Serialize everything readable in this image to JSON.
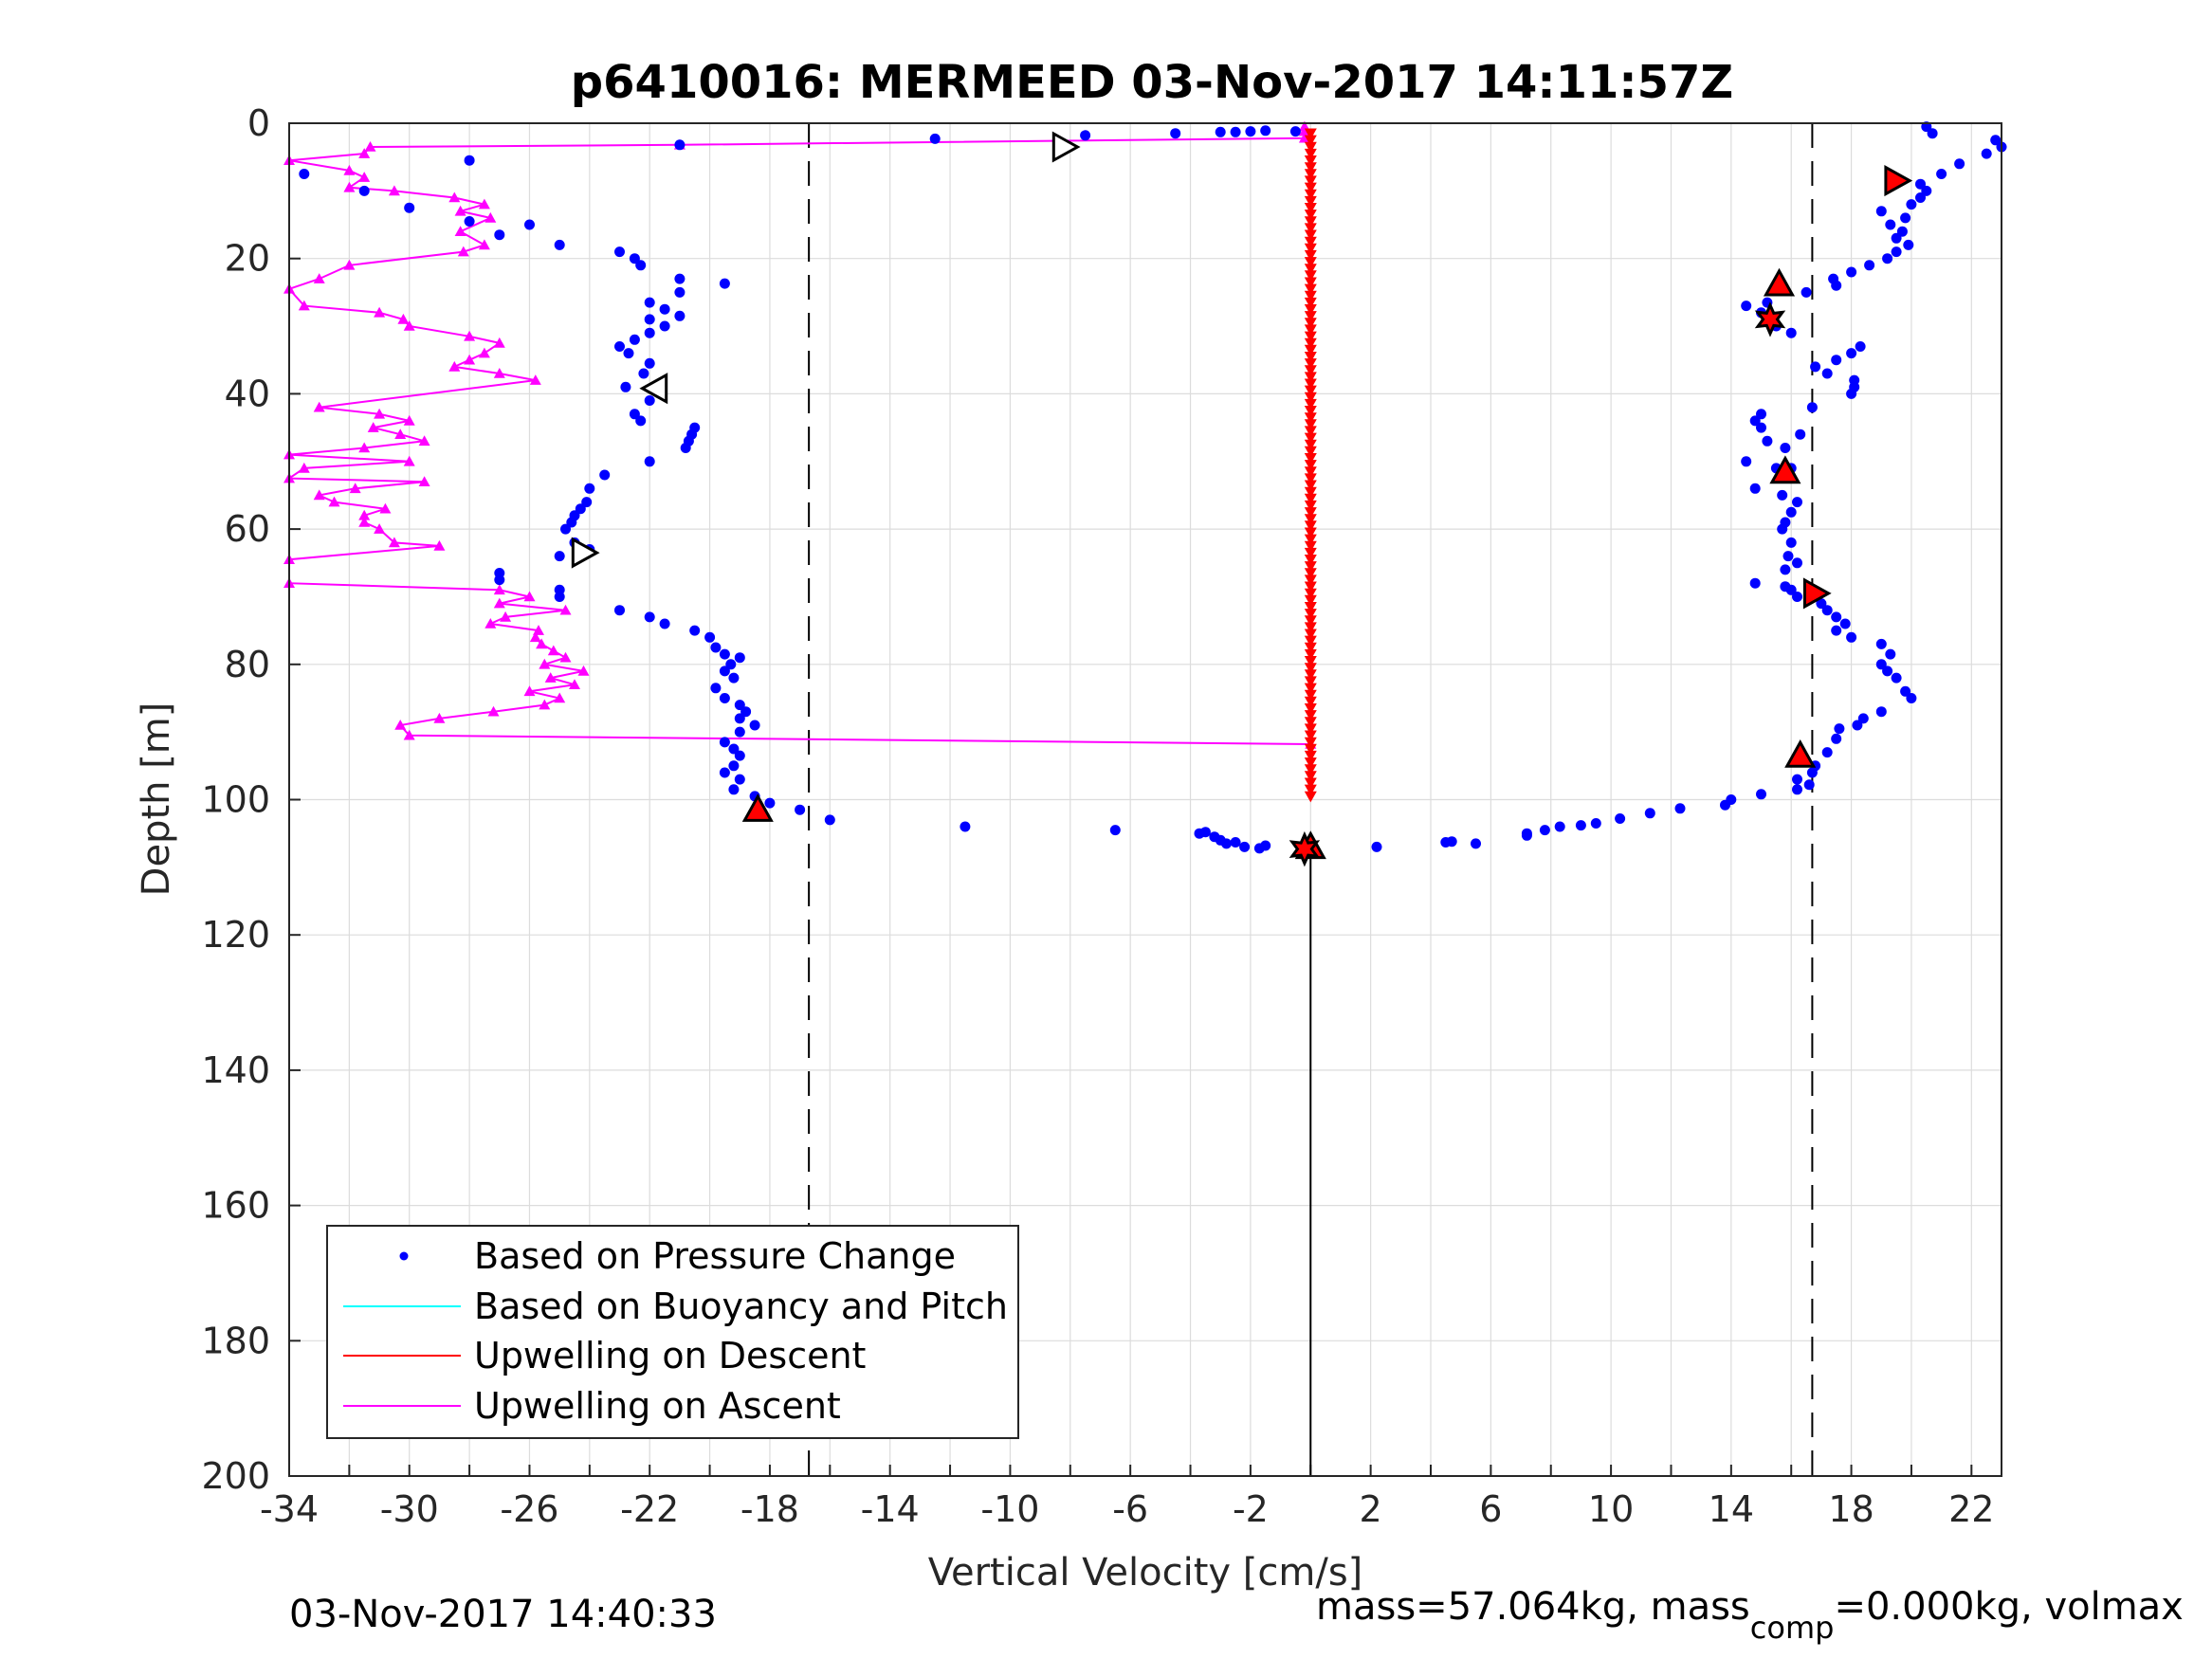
{
  "chart_data": {
    "type": "scatter",
    "title": "p6410016: MERMEED 03-Nov-2017 14:11:57Z",
    "xlabel": "Vertical Velocity [cm/s]",
    "ylabel": "Depth [m]",
    "xlim": [
      -34,
      23
    ],
    "ylim": [
      0,
      200
    ],
    "y_reversed": true,
    "grid": true,
    "xticks": [
      -34,
      -30,
      -26,
      -22,
      -18,
      -14,
      -10,
      -6,
      -2,
      2,
      6,
      10,
      14,
      18,
      22
    ],
    "yticks": [
      0,
      20,
      40,
      60,
      80,
      100,
      120,
      140,
      160,
      180,
      200
    ],
    "legend_position": "bottom-left",
    "reference_lines": [
      {
        "x": -16.7,
        "style": "dashed",
        "color": "#000000"
      },
      {
        "x": 16.7,
        "style": "dashed",
        "color": "#000000"
      },
      {
        "x": 0,
        "style": "solid",
        "color": "#000000",
        "from_depth": 107.5,
        "to_depth": 200
      }
    ],
    "series": [
      {
        "name": "Based on Pressure Change",
        "style": "dots",
        "color": "#0000ff",
        "points": [
          [
            -0.5,
            1.2
          ],
          [
            -1.5,
            1.1
          ],
          [
            -2.0,
            1.2
          ],
          [
            -2.5,
            1.3
          ],
          [
            -3.0,
            1.3
          ],
          [
            -4.5,
            1.5
          ],
          [
            -7.5,
            1.8
          ],
          [
            -12.5,
            2.3
          ],
          [
            -21,
            3.2
          ],
          [
            -33.5,
            7.5
          ],
          [
            -31.5,
            10
          ],
          [
            -30,
            12.5
          ],
          [
            -28,
            5.5
          ],
          [
            -28,
            14.5
          ],
          [
            -27,
            16.5
          ],
          [
            -26,
            15
          ],
          [
            -25,
            18
          ],
          [
            -23,
            19
          ],
          [
            -22.5,
            20
          ],
          [
            -22.3,
            21
          ],
          [
            -21,
            23
          ],
          [
            -19.5,
            23.7
          ],
          [
            -21,
            25
          ],
          [
            -22,
            26.5
          ],
          [
            -21.5,
            27.5
          ],
          [
            -21,
            28.5
          ],
          [
            -22,
            29
          ],
          [
            -21.5,
            30
          ],
          [
            -22,
            31
          ],
          [
            -22.5,
            32
          ],
          [
            -23,
            33
          ],
          [
            -22.7,
            34
          ],
          [
            -22,
            35.5
          ],
          [
            -22.2,
            37
          ],
          [
            -22.8,
            39
          ],
          [
            -22,
            41
          ],
          [
            -22.5,
            43
          ],
          [
            -22.3,
            44
          ],
          [
            -20.5,
            45
          ],
          [
            -20.6,
            46
          ],
          [
            -20.7,
            47
          ],
          [
            -20.8,
            48
          ],
          [
            -22,
            50
          ],
          [
            -23.5,
            52
          ],
          [
            -24,
            54
          ],
          [
            -24.1,
            56
          ],
          [
            -24.3,
            57
          ],
          [
            -24.5,
            58
          ],
          [
            -24.6,
            59
          ],
          [
            -24.8,
            60
          ],
          [
            -24.5,
            62
          ],
          [
            -24,
            63
          ],
          [
            -25,
            64
          ],
          [
            -27,
            66.5
          ],
          [
            -27,
            67.5
          ],
          [
            -25,
            69
          ],
          [
            -25,
            70
          ],
          [
            -23,
            72
          ],
          [
            -22,
            73
          ],
          [
            -21.5,
            74
          ],
          [
            -20.5,
            75
          ],
          [
            -20,
            76
          ],
          [
            -19.8,
            77.5
          ],
          [
            -19.5,
            78.5
          ],
          [
            -19,
            79
          ],
          [
            -19.3,
            80
          ],
          [
            -19.5,
            81
          ],
          [
            -19.2,
            82
          ],
          [
            -19.8,
            83.5
          ],
          [
            -19.5,
            85
          ],
          [
            -19,
            86
          ],
          [
            -18.8,
            87
          ],
          [
            -19,
            88
          ],
          [
            -18.5,
            89
          ],
          [
            -19,
            90
          ],
          [
            -19.5,
            91.5
          ],
          [
            -19.2,
            92.5
          ],
          [
            -19,
            93.5
          ],
          [
            -19.2,
            95
          ],
          [
            -19.5,
            96
          ],
          [
            -19,
            97
          ],
          [
            -19.2,
            98.5
          ],
          [
            -18.5,
            99.5
          ],
          [
            -18,
            100.5
          ],
          [
            -17,
            101.5
          ],
          [
            -16,
            103
          ],
          [
            -11.5,
            104
          ],
          [
            -6.5,
            104.5
          ],
          [
            -3.7,
            105
          ],
          [
            -3.5,
            104.8
          ],
          [
            -3.2,
            105.5
          ],
          [
            -3.0,
            106
          ],
          [
            -2.8,
            106.5
          ],
          [
            -2.5,
            106.3
          ],
          [
            -2.2,
            107
          ],
          [
            -1.7,
            107.2
          ],
          [
            -1.5,
            106.8
          ],
          [
            2.2,
            107
          ],
          [
            4.5,
            106.3
          ],
          [
            4.7,
            106.2
          ],
          [
            5.5,
            106.5
          ],
          [
            7.2,
            105.3
          ],
          [
            7.2,
            105
          ],
          [
            7.8,
            104.5
          ],
          [
            8.3,
            104
          ],
          [
            9.0,
            103.8
          ],
          [
            9.5,
            103.5
          ],
          [
            10.3,
            102.8
          ],
          [
            11.3,
            102
          ],
          [
            12.3,
            101.3
          ],
          [
            13.8,
            100.8
          ],
          [
            14.0,
            100
          ],
          [
            15.0,
            99.2
          ],
          [
            16.2,
            98.5
          ],
          [
            16.6,
            97.8
          ],
          [
            16.2,
            97
          ],
          [
            16.7,
            96
          ],
          [
            16.8,
            95
          ],
          [
            17.2,
            93
          ],
          [
            17.5,
            91
          ],
          [
            17.6,
            89.5
          ],
          [
            18.2,
            89
          ],
          [
            18.4,
            88
          ],
          [
            19.0,
            87
          ],
          [
            20.0,
            85
          ],
          [
            19.8,
            84
          ],
          [
            19.5,
            82
          ],
          [
            19.2,
            81
          ],
          [
            19.0,
            80
          ],
          [
            19.3,
            78.5
          ],
          [
            19.0,
            77
          ],
          [
            18.0,
            76
          ],
          [
            17.5,
            75
          ],
          [
            17.8,
            74
          ],
          [
            17.5,
            73
          ],
          [
            17.2,
            72
          ],
          [
            17.0,
            71
          ],
          [
            16.2,
            70
          ],
          [
            16.0,
            69
          ],
          [
            15.8,
            68.5
          ],
          [
            14.8,
            68
          ],
          [
            15.8,
            66
          ],
          [
            16.2,
            65
          ],
          [
            15.9,
            64
          ],
          [
            16.0,
            62
          ],
          [
            15.7,
            60
          ],
          [
            15.8,
            59
          ],
          [
            16.0,
            57.5
          ],
          [
            16.2,
            56
          ],
          [
            15.7,
            55
          ],
          [
            14.8,
            54
          ],
          [
            15.7,
            52
          ],
          [
            15.5,
            51
          ],
          [
            16.0,
            51
          ],
          [
            14.5,
            50
          ],
          [
            15.8,
            48
          ],
          [
            15.2,
            47
          ],
          [
            16.3,
            46
          ],
          [
            15.0,
            45
          ],
          [
            14.8,
            44
          ],
          [
            15.0,
            43
          ],
          [
            16.7,
            42
          ],
          [
            18.0,
            40
          ],
          [
            18.1,
            39
          ],
          [
            18.1,
            38
          ],
          [
            17.2,
            37
          ],
          [
            16.8,
            36
          ],
          [
            17.5,
            35
          ],
          [
            18.0,
            34
          ],
          [
            18.3,
            33
          ],
          [
            16.0,
            31
          ],
          [
            15.5,
            30
          ],
          [
            15.2,
            29
          ],
          [
            15.0,
            28
          ],
          [
            14.5,
            27
          ],
          [
            15.2,
            26.5
          ],
          [
            16.5,
            25
          ],
          [
            17.5,
            24
          ],
          [
            17.4,
            23
          ],
          [
            18,
            22
          ],
          [
            18.6,
            21
          ],
          [
            19.2,
            20
          ],
          [
            19.5,
            19
          ],
          [
            19.9,
            18
          ],
          [
            19.5,
            17
          ],
          [
            19.7,
            16
          ],
          [
            19.3,
            15
          ],
          [
            19.8,
            14
          ],
          [
            19.0,
            13
          ],
          [
            20.0,
            12
          ],
          [
            20.3,
            11
          ],
          [
            20.5,
            10
          ],
          [
            20.3,
            9
          ],
          [
            21.0,
            7.5
          ],
          [
            21.6,
            6
          ],
          [
            22.5,
            4.5
          ],
          [
            23.0,
            3.5
          ],
          [
            22.8,
            2.5
          ],
          [
            20.7,
            1.5
          ],
          [
            20.5,
            0.5
          ]
        ]
      },
      {
        "name": "Based on Buoyancy and Pitch",
        "style": "line",
        "color": "#00ffff",
        "points": []
      },
      {
        "name": "Upwelling on Descent",
        "style": "line-with-triangle-down-markers",
        "color": "#ff0000",
        "x_constant": 0,
        "depth_start": 1.5,
        "depth_end": 100,
        "depth_step": 1.0
      },
      {
        "name": "Upwelling on Ascent",
        "style": "line-with-triangle-up-markers",
        "color": "#ff00ff",
        "points": [
          [
            0,
            91.8
          ],
          [
            -30,
            90.5
          ],
          [
            -30.3,
            89
          ],
          [
            -29,
            88
          ],
          [
            -27.2,
            87
          ],
          [
            -25.5,
            86
          ],
          [
            -25,
            85
          ],
          [
            -26,
            84
          ],
          [
            -24.5,
            83
          ],
          [
            -25.3,
            82
          ],
          [
            -24.2,
            81
          ],
          [
            -25.5,
            80
          ],
          [
            -24.8,
            79
          ],
          [
            -25.2,
            78
          ],
          [
            -25.6,
            77
          ],
          [
            -25.8,
            76
          ],
          [
            -25.7,
            75
          ],
          [
            -27.3,
            74
          ],
          [
            -26.8,
            73
          ],
          [
            -24.8,
            72
          ],
          [
            -27,
            71
          ],
          [
            -26,
            70
          ],
          [
            -27,
            69
          ],
          [
            -34,
            68
          ],
          [
            -34,
            64.5
          ],
          [
            -29,
            62.5
          ],
          [
            -30.5,
            62
          ],
          [
            -31,
            60
          ],
          [
            -31.5,
            59
          ],
          [
            -31.5,
            58
          ],
          [
            -30.8,
            57
          ],
          [
            -32.5,
            56
          ],
          [
            -33,
            55
          ],
          [
            -31.8,
            54
          ],
          [
            -29.5,
            53
          ],
          [
            -34,
            52.5
          ],
          [
            -33.5,
            51
          ],
          [
            -30,
            50
          ],
          [
            -34,
            49
          ],
          [
            -31.5,
            48
          ],
          [
            -29.5,
            47
          ],
          [
            -30.3,
            46
          ],
          [
            -31.2,
            45
          ],
          [
            -30,
            44
          ],
          [
            -31,
            43
          ],
          [
            -33,
            42
          ],
          [
            -25.8,
            38
          ],
          [
            -27,
            37
          ],
          [
            -28.5,
            36
          ],
          [
            -28,
            35
          ],
          [
            -27.5,
            34
          ],
          [
            -27,
            32.5
          ],
          [
            -28,
            31.5
          ],
          [
            -30,
            30
          ],
          [
            -30.2,
            29
          ],
          [
            -31,
            28
          ],
          [
            -33.5,
            27
          ],
          [
            -34,
            24.5
          ],
          [
            -33,
            23
          ],
          [
            -32,
            21
          ],
          [
            -28.2,
            19
          ],
          [
            -27.5,
            18
          ],
          [
            -28.3,
            16
          ],
          [
            -27.3,
            14
          ],
          [
            -28.3,
            13
          ],
          [
            -27.5,
            12
          ],
          [
            -28.5,
            11
          ],
          [
            -30.5,
            10
          ],
          [
            -32,
            9.5
          ],
          [
            -31.5,
            8
          ],
          [
            -32,
            7
          ],
          [
            -34,
            5.5
          ],
          [
            -31.5,
            4.5
          ],
          [
            -31.3,
            3.5
          ],
          [
            -21,
            3.2
          ],
          [
            -0.2,
            2.2
          ],
          [
            -0.2,
            1.2
          ],
          [
            -0.2,
            0.5
          ]
        ]
      }
    ],
    "markers": [
      {
        "shape": "triangle-right",
        "fill": "#ffffff",
        "points": [
          [
            -8.2,
            3.5
          ],
          [
            -24.2,
            63.5
          ]
        ]
      },
      {
        "shape": "triangle-left",
        "fill": "#ffffff",
        "points": [
          [
            -21.8,
            39.2
          ]
        ]
      },
      {
        "shape": "triangle-up",
        "fill": "#ff0000",
        "points": [
          [
            -18.4,
            101.5
          ],
          [
            15.6,
            23.8
          ],
          [
            15.8,
            51.5
          ],
          [
            16.3,
            93.5
          ],
          [
            0,
            107
          ]
        ]
      },
      {
        "shape": "triangle-right",
        "fill": "#ff0000",
        "points": [
          [
            19.5,
            8.5
          ],
          [
            16.8,
            69.5
          ]
        ]
      },
      {
        "shape": "hexagram",
        "fill": "#ff0000",
        "points": [
          [
            15.3,
            29
          ],
          [
            -0.2,
            107.3
          ]
        ]
      }
    ]
  },
  "footer": {
    "timestamp": "03-Nov-2017 14:40:33",
    "mass_prefix": "mass=57.064kg, mass",
    "mass_subscript": "comp",
    "mass_suffix": "=0.000kg, volmax"
  }
}
